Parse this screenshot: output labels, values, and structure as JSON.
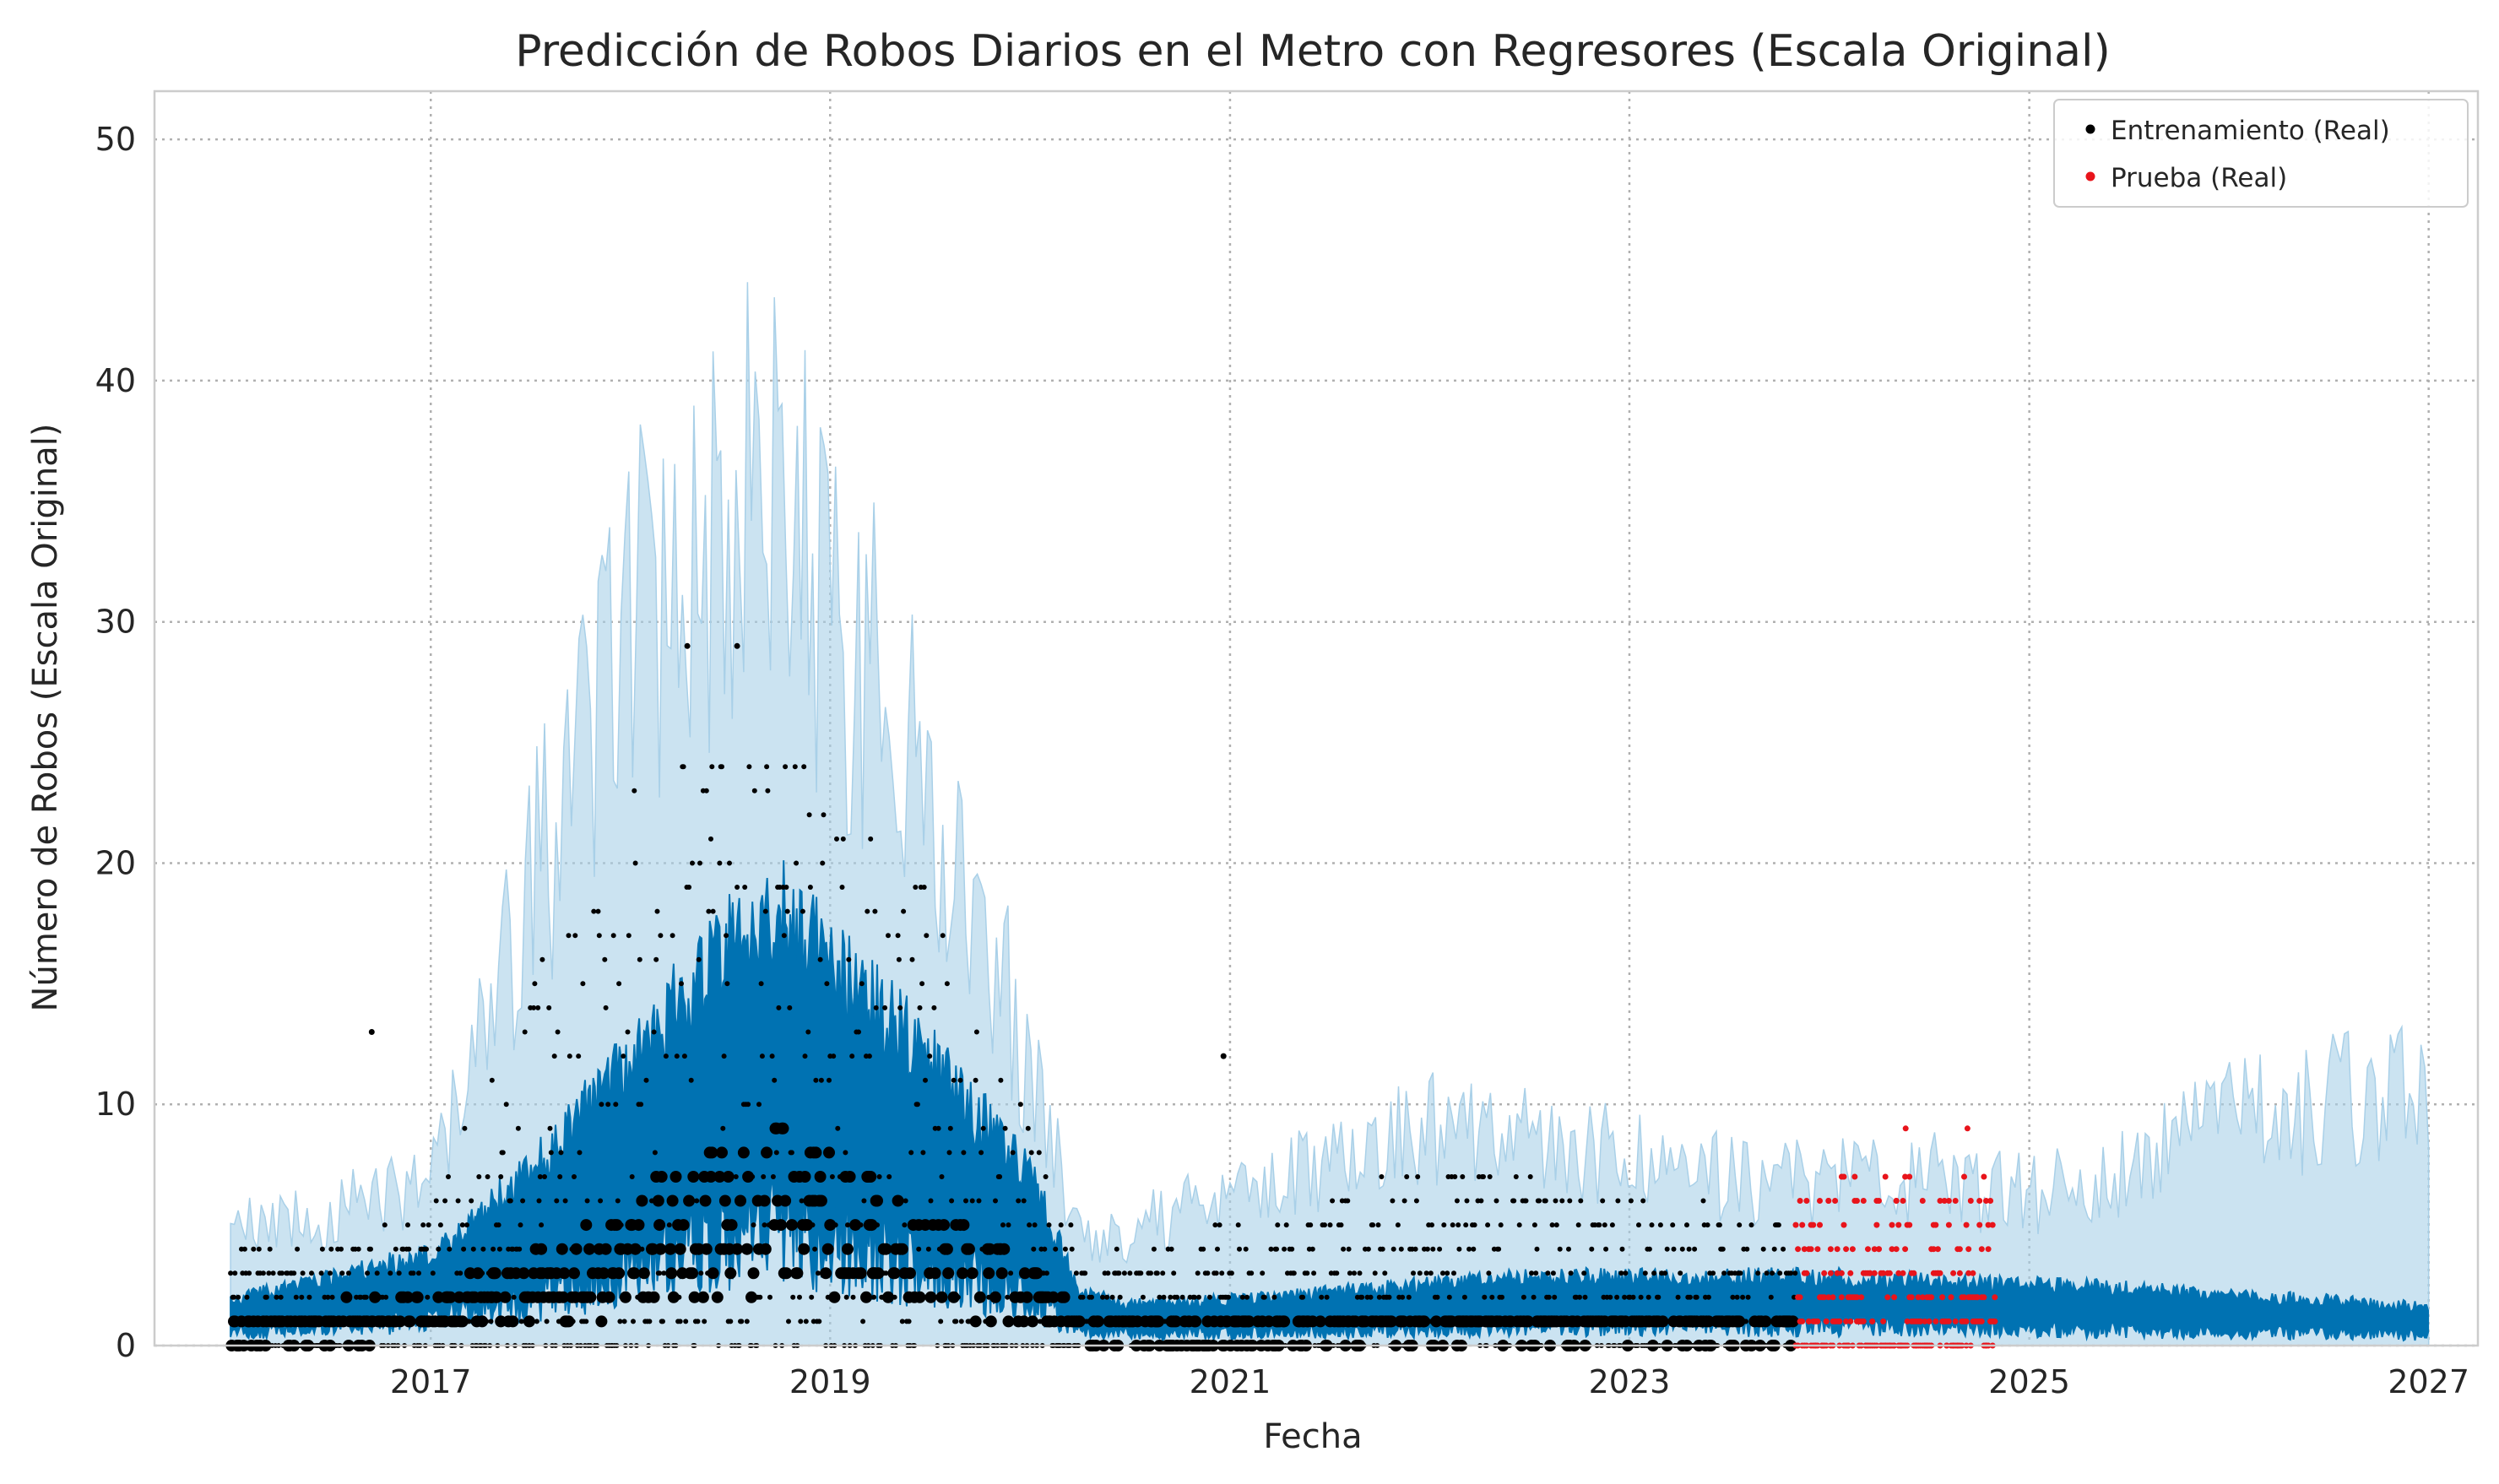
{
  "chart_data": {
    "type": "line",
    "title": "Predicción de Robos Diarios en el Metro con Regresores (Escala Original)",
    "xlabel": "Fecha",
    "ylabel": "Número de Robos (Escala Original)",
    "x_ticks": [
      "2017",
      "2019",
      "2021",
      "2023",
      "2025",
      "2027"
    ],
    "y_ticks": [
      0,
      10,
      20,
      30,
      40,
      50
    ],
    "xlim": [
      "2015-08-15",
      "2027-04-01"
    ],
    "ylim": [
      0,
      52
    ],
    "grid": true,
    "legend_placement": "top-right",
    "colors": {
      "train": "#000000",
      "test": "#e8141b",
      "forecast": "#0072b2",
      "interval": "#a9d0e8",
      "grid": "#b0b0b0",
      "axes": "#cccccc"
    },
    "series": [
      {
        "name": "Entrenamiento (Real)",
        "kind": "scatter",
        "x_range": [
          "2016-01-01",
          "2023-10-31"
        ],
        "y_values": [
          0,
          1,
          2,
          3,
          4,
          5,
          6,
          7,
          8,
          9,
          10,
          11,
          12,
          13,
          14,
          15,
          16,
          17,
          18,
          19,
          20,
          21,
          22,
          23,
          24,
          29
        ],
        "max_points": [
          {
            "x": "2016-09-15",
            "y": 13
          },
          {
            "x": "2018-04-15",
            "y": 29
          },
          {
            "x": "2018-07-15",
            "y": 29
          },
          {
            "x": "2020-12-20",
            "y": 12
          }
        ]
      },
      {
        "name": "Prueba (Real)",
        "kind": "scatter",
        "x_range": [
          "2023-11-01",
          "2024-10-31"
        ],
        "y_values": [
          0,
          1,
          2,
          3,
          4,
          5,
          6,
          7,
          8,
          9
        ],
        "max_points": [
          {
            "x": "2024-05-20",
            "y": 9
          },
          {
            "x": "2024-09-10",
            "y": 9
          }
        ]
      },
      {
        "kind": "forecast",
        "x": [
          "2016-01-01",
          "2016-07-01",
          "2017-01-01",
          "2017-07-01",
          "2018-01-01",
          "2018-07-01",
          "2018-10-01",
          "2019-01-01",
          "2019-07-01",
          "2020-01-01",
          "2020-04-01",
          "2020-07-01",
          "2021-01-01",
          "2021-07-01",
          "2022-01-01",
          "2022-07-01",
          "2023-01-01",
          "2023-07-01",
          "2024-01-01",
          "2024-07-01",
          "2025-01-01",
          "2025-07-01",
          "2026-01-01",
          "2026-07-01",
          "2027-01-01"
        ],
        "yhat": [
          1.2,
          1.8,
          2.4,
          4.5,
          7.5,
          10.5,
          11.5,
          10.0,
          7.5,
          4.5,
          1.4,
          1.1,
          1.2,
          1.4,
          1.6,
          1.8,
          1.8,
          1.8,
          1.8,
          1.7,
          1.6,
          1.5,
          1.3,
          1.2,
          1.0
        ],
        "yhat_lower": [
          0,
          0,
          0,
          0,
          0,
          0,
          0,
          0,
          0,
          0,
          0,
          0,
          0,
          0,
          0,
          0,
          0,
          0,
          0,
          0,
          0,
          0,
          0,
          0,
          0
        ],
        "yhat_upper": [
          6,
          7,
          9,
          24,
          38,
          44,
          45,
          39,
          30,
          15,
          6,
          6,
          8,
          10,
          12,
          11,
          10,
          9,
          9,
          9,
          8,
          9,
          12,
          13,
          14
        ]
      }
    ],
    "legend_entries": [
      "Entrenamiento (Real)",
      "Prueba (Real)"
    ]
  }
}
